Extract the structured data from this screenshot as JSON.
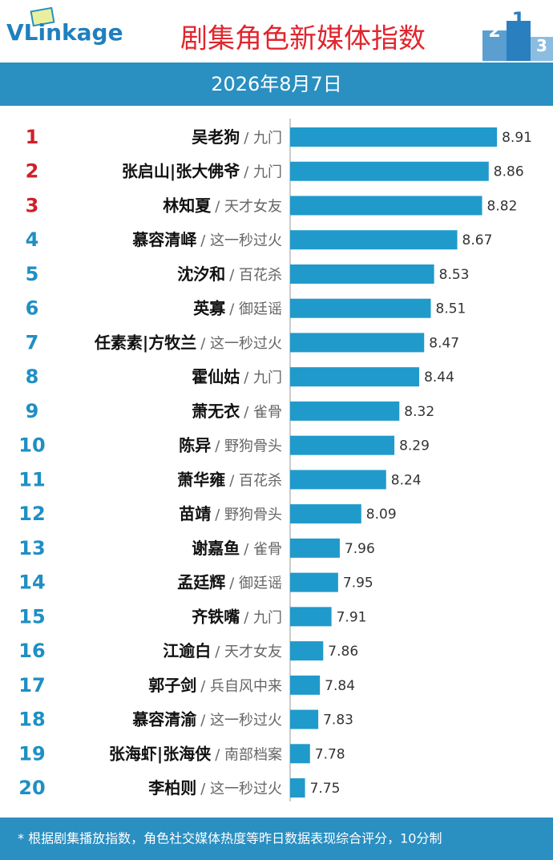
{
  "logo": "VLinkage",
  "podium": [
    "2",
    "1",
    "3"
  ],
  "chart_data": {
    "type": "bar",
    "title": "剧集角色新媒体指数",
    "subtitle": "2026年8月7日",
    "ranks": [
      "1",
      "2",
      "3",
      "4",
      "5",
      "6",
      "7",
      "8",
      "9",
      "10",
      "11",
      "12",
      "13",
      "14",
      "15",
      "16",
      "17",
      "18",
      "19",
      "20"
    ],
    "categories": [
      "吴老狗",
      "张启山|张大佛爷",
      "林知夏",
      "慕容清峄",
      "沈汐和",
      "英寡",
      "任素素|方牧兰",
      "霍仙姑",
      "萧无衣",
      "陈异",
      "萧华雍",
      "苗靖",
      "谢嘉鱼",
      "孟廷辉",
      "齐铁嘴",
      "江逾白",
      "郭子剑",
      "慕容清渝",
      "张海虾|张海侠",
      "李柏则"
    ],
    "dramas": [
      "/ 九门",
      "/ 九门",
      "/ 天才女友",
      "/ 这一秒过火",
      "/ 百花杀",
      "/ 御廷谣",
      "/ 这一秒过火",
      "/ 九门",
      "/ 雀骨",
      "/ 野狗骨头",
      "/ 百花杀",
      "/ 野狗骨头",
      "/ 雀骨",
      "/ 御廷谣",
      "/ 九门",
      "/ 天才女友",
      "/ 兵自风中来",
      "/ 这一秒过火",
      "/ 南部档案",
      "/ 这一秒过火"
    ],
    "values": [
      8.91,
      8.86,
      8.82,
      8.67,
      8.53,
      8.51,
      8.47,
      8.44,
      8.32,
      8.29,
      8.24,
      8.09,
      7.96,
      7.95,
      7.91,
      7.86,
      7.84,
      7.83,
      7.78,
      7.75
    ],
    "xlim": [
      7.66,
      9.2
    ],
    "color": "#1f9acb",
    "top_rank_color": "#d0202a",
    "rank_color": "#1f8fc4",
    "footnote": "* 根据剧集播放指数，角色社交媒体热度等昨日数据表现综合评分，10分制"
  }
}
